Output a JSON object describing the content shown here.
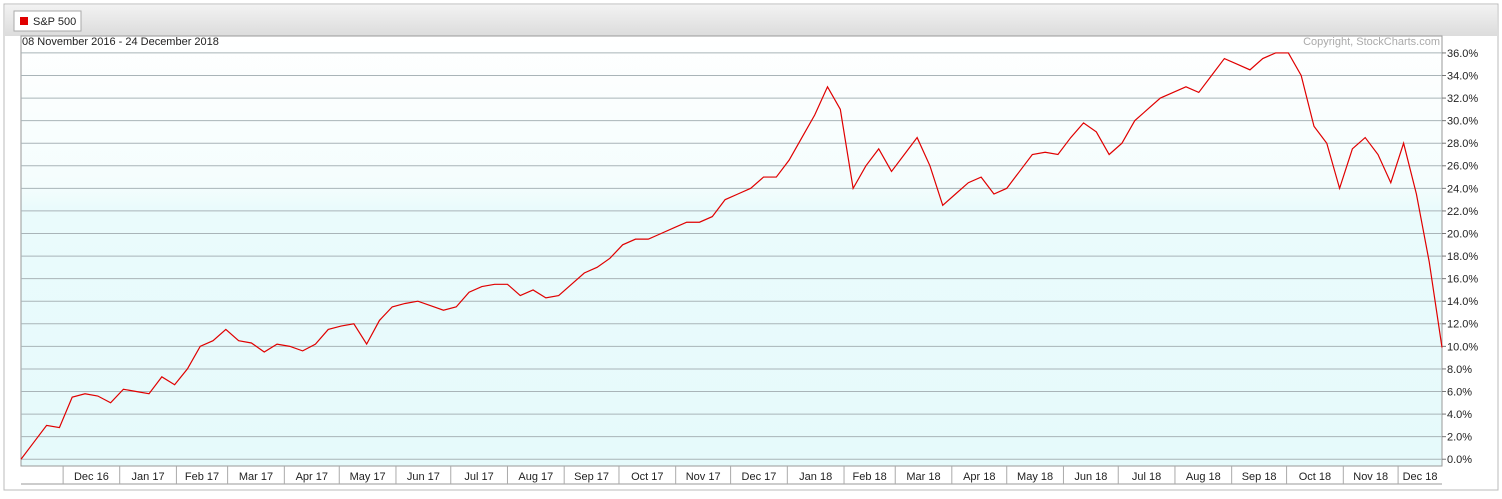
{
  "chart_data": {
    "type": "line",
    "subtitle": "08 November 2016 - 24 December 2018",
    "annotation": "Copyright, StockCharts.com",
    "series": [
      {
        "name": "S&P 500",
        "color": "#e00000",
        "values": [
          0.0,
          1.5,
          3.0,
          2.8,
          5.5,
          5.8,
          5.6,
          5.0,
          6.2,
          6.0,
          5.8,
          7.3,
          6.6,
          8.0,
          10.0,
          10.5,
          11.5,
          10.5,
          10.3,
          9.5,
          10.2,
          10.0,
          9.6,
          10.2,
          11.5,
          11.8,
          12.0,
          10.2,
          12.3,
          13.5,
          13.8,
          14.0,
          13.6,
          13.2,
          13.5,
          14.8,
          15.3,
          15.5,
          15.5,
          14.5,
          15.0,
          14.3,
          14.5,
          15.5,
          16.5,
          17.0,
          17.8,
          19.0,
          19.5,
          19.5,
          20.0,
          20.5,
          21.0,
          21.0,
          21.5,
          23.0,
          23.5,
          24.0,
          25.0,
          25.0,
          26.5,
          28.5,
          30.5,
          33.0,
          31.0,
          24.0,
          26.0,
          27.5,
          25.5,
          27.0,
          28.5,
          26.0,
          22.5,
          23.5,
          24.5,
          25.0,
          23.5,
          24.0,
          25.5,
          27.0,
          27.2,
          27.0,
          28.5,
          29.8,
          29.0,
          27.0,
          28.0,
          30.0,
          31.0,
          32.0,
          32.5,
          33.0,
          32.5,
          34.0,
          35.5,
          35.0,
          34.5,
          35.5,
          36.0,
          36.0,
          34.0,
          29.5,
          28.0,
          24.0,
          27.5,
          28.5,
          27.0,
          24.5,
          28.0,
          23.5,
          17.5,
          9.9
        ]
      }
    ],
    "xlim": [
      0,
      111
    ],
    "xticks": [
      {
        "value": 3.29,
        "label": "Dec 16"
      },
      {
        "value": 7.71,
        "label": "Jan 17"
      },
      {
        "value": 12.14,
        "label": "Feb 17"
      },
      {
        "value": 16.14,
        "label": "Mar 17"
      },
      {
        "value": 20.57,
        "label": "Apr 17"
      },
      {
        "value": 24.86,
        "label": "May 17"
      },
      {
        "value": 29.29,
        "label": "Jun 17"
      },
      {
        "value": 33.57,
        "label": "Jul 17"
      },
      {
        "value": 38,
        "label": "Aug 17"
      },
      {
        "value": 42.43,
        "label": "Sep 17"
      },
      {
        "value": 46.71,
        "label": "Oct 17"
      },
      {
        "value": 51.14,
        "label": "Nov 17"
      },
      {
        "value": 55.43,
        "label": "Dec 17"
      },
      {
        "value": 59.86,
        "label": "Jan 18"
      },
      {
        "value": 64.29,
        "label": "Feb 18"
      },
      {
        "value": 68.29,
        "label": "Mar 18"
      },
      {
        "value": 72.71,
        "label": "Apr 18"
      },
      {
        "value": 77,
        "label": "May 18"
      },
      {
        "value": 81.43,
        "label": "Jun 18"
      },
      {
        "value": 85.71,
        "label": "Jul 18"
      },
      {
        "value": 90.14,
        "label": "Aug 18"
      },
      {
        "value": 94.57,
        "label": "Sep 18"
      },
      {
        "value": 98.86,
        "label": "Oct 18"
      },
      {
        "value": 103.29,
        "label": "Nov 18"
      },
      {
        "value": 107.57,
        "label": "Dec 18"
      }
    ],
    "ylim": [
      -0.6,
      37.5
    ],
    "yticks": [
      {
        "value": 0,
        "label": "0.0%"
      },
      {
        "value": 2,
        "label": "2.0%"
      },
      {
        "value": 4,
        "label": "4.0%"
      },
      {
        "value": 6,
        "label": "6.0%"
      },
      {
        "value": 8,
        "label": "8.0%"
      },
      {
        "value": 10,
        "label": "10.0%"
      },
      {
        "value": 12,
        "label": "12.0%"
      },
      {
        "value": 14,
        "label": "14.0%"
      },
      {
        "value": 16,
        "label": "16.0%"
      },
      {
        "value": 18,
        "label": "18.0%"
      },
      {
        "value": 20,
        "label": "20.0%"
      },
      {
        "value": 22,
        "label": "22.0%"
      },
      {
        "value": 24,
        "label": "24.0%"
      },
      {
        "value": 26,
        "label": "26.0%"
      },
      {
        "value": 28,
        "label": "28.0%"
      },
      {
        "value": 30,
        "label": "30.0%"
      },
      {
        "value": 32,
        "label": "32.0%"
      },
      {
        "value": 34,
        "label": "34.0%"
      },
      {
        "value": 36,
        "label": "36.0%"
      }
    ],
    "grid": true,
    "legend": "top-left"
  }
}
